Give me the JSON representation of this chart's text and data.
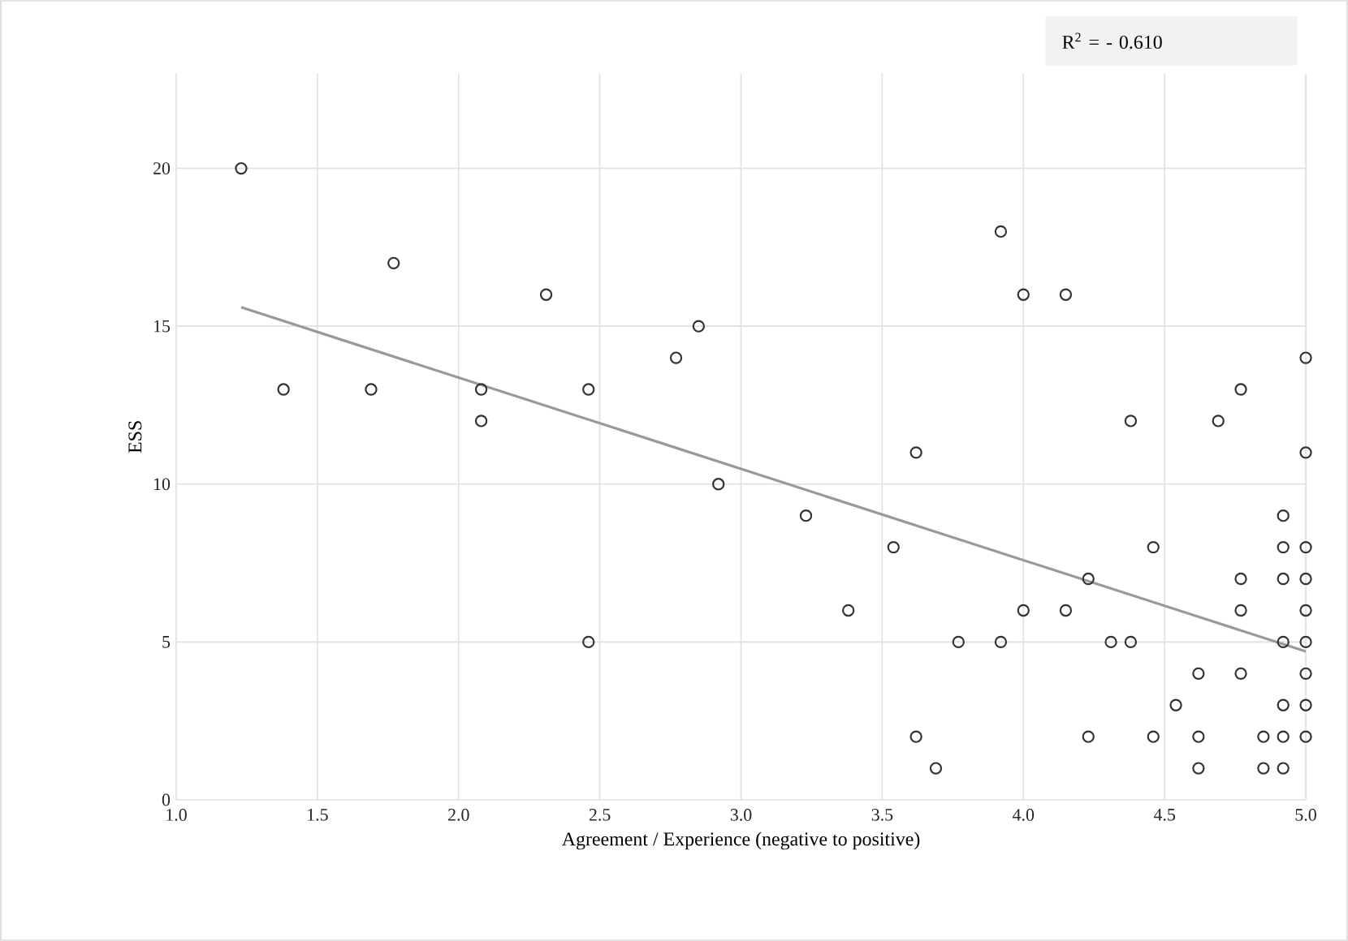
{
  "chart_data": {
    "type": "scatter",
    "xlabel": "Agreement / Experience (negative to positive)",
    "ylabel": "ESS",
    "annotations": [
      "R$^{2}$ = - 0.610"
    ],
    "xlim": [
      1,
      5
    ],
    "ylim": [
      0,
      23
    ],
    "xticks": [
      {
        "value": 1,
        "label": "1.0"
      },
      {
        "value": 1.5,
        "label": "1.5"
      },
      {
        "value": 2,
        "label": "2.0"
      },
      {
        "value": 2.5,
        "label": "2.5"
      },
      {
        "value": 3,
        "label": "3.0"
      },
      {
        "value": 3.5,
        "label": "3.5"
      },
      {
        "value": 4,
        "label": "4.0"
      },
      {
        "value": 4.5,
        "label": "4.5"
      },
      {
        "value": 5,
        "label": "5.0"
      }
    ],
    "yticks": [
      0,
      5,
      10,
      15,
      20
    ],
    "grid": true,
    "series": [
      {
        "marker": "circle",
        "color": "#333333",
        "x": [
          1.23,
          1.38,
          1.69,
          1.77,
          2.08,
          2.08,
          2.31,
          2.46,
          2.46,
          2.77,
          2.85,
          2.92,
          3.23,
          3.38,
          3.54,
          3.62,
          3.62,
          3.69,
          3.77,
          3.92,
          3.92,
          4.0,
          4.0,
          4.15,
          4.15,
          4.23,
          4.23,
          4.31,
          4.38,
          4.38,
          4.46,
          4.46,
          4.54,
          4.62,
          4.62,
          4.62,
          4.69,
          4.77,
          4.77,
          4.77,
          4.77,
          4.85,
          4.85,
          4.92,
          4.92,
          4.92,
          4.92,
          4.92,
          4.92,
          4.92,
          5.0,
          5.0,
          5.0,
          5.0,
          5.0,
          5.0,
          5.0,
          5.0,
          5.0
        ],
        "values": [
          20,
          13,
          13,
          17,
          13,
          12,
          16,
          13,
          5,
          14,
          15,
          10,
          9,
          6,
          8,
          11,
          2,
          1,
          5,
          18,
          5,
          16,
          6,
          16,
          6,
          7,
          2,
          5,
          5,
          12,
          8,
          2,
          3,
          4,
          2,
          1,
          12,
          13,
          7,
          6,
          4,
          2,
          1,
          9,
          8,
          7,
          5,
          3,
          2,
          1,
          14,
          11,
          8,
          7,
          6,
          5,
          4,
          3,
          2
        ]
      },
      {
        "type": "line",
        "marker": "none",
        "color": "#999999",
        "x": [
          1.23,
          5.0
        ],
        "values": [
          15.6,
          4.7
        ]
      }
    ]
  }
}
